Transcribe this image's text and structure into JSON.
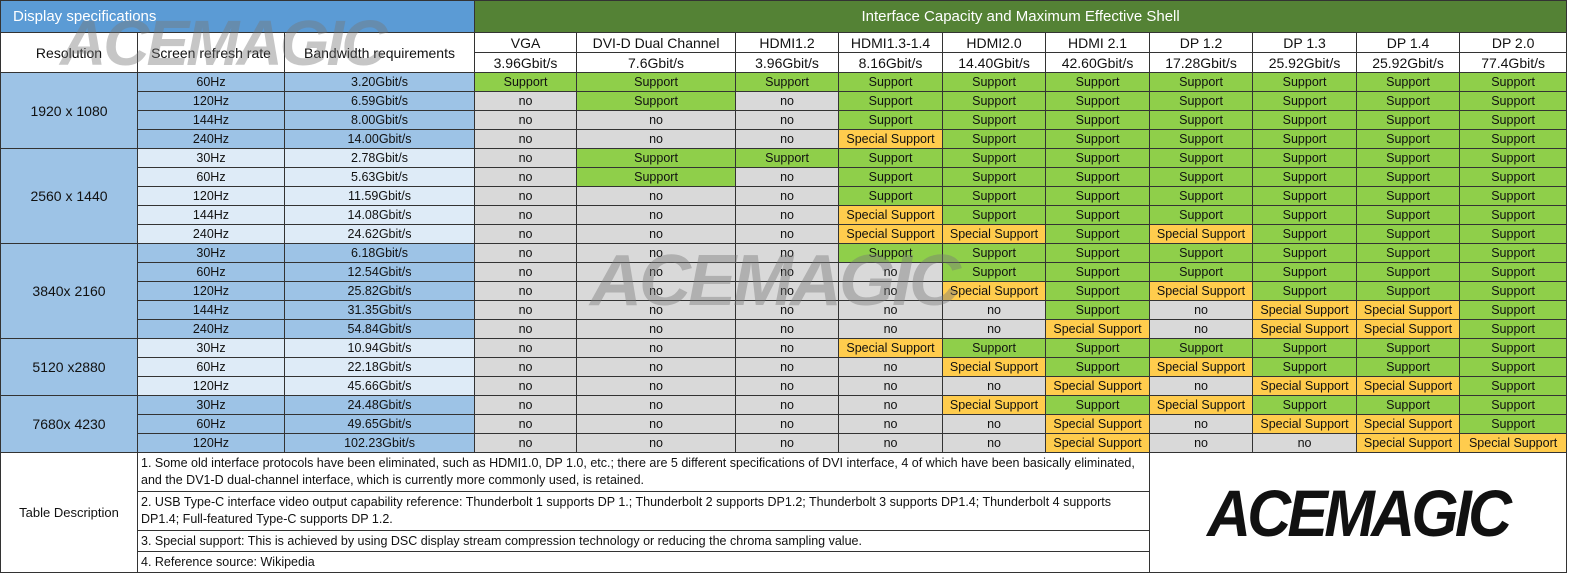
{
  "header": {
    "display_title": "Display specifications",
    "interface_title": "Interface Capacity and Maximum Effective Shell",
    "columns": [
      "Resolution",
      "Screen refresh rate",
      "Bandwidth requirements"
    ],
    "interfaces": [
      {
        "name": "VGA",
        "capacity": "3.96Gbit/s"
      },
      {
        "name": "DVI-D Dual Channel",
        "capacity": "7.6Gbit/s"
      },
      {
        "name": "HDMI1.2",
        "capacity": "3.96Gbit/s"
      },
      {
        "name": "HDMI1.3-1.4",
        "capacity": "8.16Gbit/s"
      },
      {
        "name": "HDMI2.0",
        "capacity": "14.40Gbit/s"
      },
      {
        "name": "HDMI 2.1",
        "capacity": "42.60Gbit/s"
      },
      {
        "name": "DP 1.2",
        "capacity": "17.28Gbit/s"
      },
      {
        "name": "DP 1.3",
        "capacity": "25.92Gbit/s"
      },
      {
        "name": "DP 1.4",
        "capacity": "25.92Gbit/s"
      },
      {
        "name": "DP 2.0",
        "capacity": "77.4Gbit/s"
      }
    ]
  },
  "status_labels": {
    "S": "Support",
    "P": "Special Support",
    "N": "no"
  },
  "status_colors": {
    "S": "#8fcf4a",
    "P": "#ffcc4d",
    "N": "#d9d9d9"
  },
  "groups": [
    {
      "resolution": "1920 x 1080",
      "rows": [
        {
          "hz": "60Hz",
          "bw": "3.20Gbit/s",
          "s": [
            "S",
            "S",
            "S",
            "S",
            "S",
            "S",
            "S",
            "S",
            "S",
            "S"
          ]
        },
        {
          "hz": "120Hz",
          "bw": "6.59Gbit/s",
          "s": [
            "N",
            "S",
            "N",
            "S",
            "S",
            "S",
            "S",
            "S",
            "S",
            "S"
          ]
        },
        {
          "hz": "144Hz",
          "bw": "8.00Gbit/s",
          "s": [
            "N",
            "N",
            "N",
            "S",
            "S",
            "S",
            "S",
            "S",
            "S",
            "S"
          ]
        },
        {
          "hz": "240Hz",
          "bw": "14.00Gbit/s",
          "s": [
            "N",
            "N",
            "N",
            "P",
            "S",
            "S",
            "S",
            "S",
            "S",
            "S"
          ]
        }
      ]
    },
    {
      "resolution": "2560 x 1440",
      "rows": [
        {
          "hz": "30Hz",
          "bw": "2.78Gbit/s",
          "s": [
            "N",
            "S",
            "S",
            "S",
            "S",
            "S",
            "S",
            "S",
            "S",
            "S"
          ]
        },
        {
          "hz": "60Hz",
          "bw": "5.63Gbit/s",
          "s": [
            "N",
            "S",
            "N",
            "S",
            "S",
            "S",
            "S",
            "S",
            "S",
            "S"
          ]
        },
        {
          "hz": "120Hz",
          "bw": "11.59Gbit/s",
          "s": [
            "N",
            "N",
            "N",
            "S",
            "S",
            "S",
            "S",
            "S",
            "S",
            "S"
          ]
        },
        {
          "hz": "144Hz",
          "bw": "14.08Gbit/s",
          "s": [
            "N",
            "N",
            "N",
            "P",
            "S",
            "S",
            "S",
            "S",
            "S",
            "S"
          ]
        },
        {
          "hz": "240Hz",
          "bw": "24.62Gbit/s",
          "s": [
            "N",
            "N",
            "N",
            "P",
            "P",
            "S",
            "P",
            "S",
            "S",
            "S"
          ]
        }
      ]
    },
    {
      "resolution": "3840x 2160",
      "rows": [
        {
          "hz": "30Hz",
          "bw": "6.18Gbit/s",
          "s": [
            "N",
            "N",
            "N",
            "S",
            "S",
            "S",
            "S",
            "S",
            "S",
            "S"
          ]
        },
        {
          "hz": "60Hz",
          "bw": "12.54Gbit/s",
          "s": [
            "N",
            "N",
            "N",
            "N",
            "S",
            "S",
            "S",
            "S",
            "S",
            "S"
          ]
        },
        {
          "hz": "120Hz",
          "bw": "25.82Gbit/s",
          "s": [
            "N",
            "N",
            "N",
            "N",
            "P",
            "S",
            "P",
            "S",
            "S",
            "S"
          ]
        },
        {
          "hz": "144Hz",
          "bw": "31.35Gbit/s",
          "s": [
            "N",
            "N",
            "N",
            "N",
            "N",
            "S",
            "N",
            "P",
            "P",
            "S"
          ]
        },
        {
          "hz": "240Hz",
          "bw": "54.84Gbit/s",
          "s": [
            "N",
            "N",
            "N",
            "N",
            "N",
            "P",
            "N",
            "P",
            "P",
            "S"
          ]
        }
      ]
    },
    {
      "resolution": "5120 x2880",
      "rows": [
        {
          "hz": "30Hz",
          "bw": "10.94Gbit/s",
          "s": [
            "N",
            "N",
            "N",
            "P",
            "S",
            "S",
            "S",
            "S",
            "S",
            "S"
          ]
        },
        {
          "hz": "60Hz",
          "bw": "22.18Gbit/s",
          "s": [
            "N",
            "N",
            "N",
            "N",
            "P",
            "S",
            "P",
            "S",
            "S",
            "S"
          ]
        },
        {
          "hz": "120Hz",
          "bw": "45.66Gbit/s",
          "s": [
            "N",
            "N",
            "N",
            "N",
            "N",
            "P",
            "N",
            "P",
            "P",
            "S"
          ]
        }
      ]
    },
    {
      "resolution": "7680x 4230",
      "rows": [
        {
          "hz": "30Hz",
          "bw": "24.48Gbit/s",
          "s": [
            "N",
            "N",
            "N",
            "N",
            "P",
            "S",
            "P",
            "S",
            "S",
            "S"
          ]
        },
        {
          "hz": "60Hz",
          "bw": "49.65Gbit/s",
          "s": [
            "N",
            "N",
            "N",
            "N",
            "N",
            "P",
            "N",
            "P",
            "P",
            "S"
          ]
        },
        {
          "hz": "120Hz",
          "bw": "102.23Gbit/s",
          "s": [
            "N",
            "N",
            "N",
            "N",
            "N",
            "P",
            "N",
            "N",
            "P",
            "P"
          ]
        }
      ]
    }
  ],
  "notes": {
    "label": "Table Description",
    "items": [
      "1. Some old interface protocols have been eliminated, such as HDMI1.0, DP 1.0, etc.; there are 5 different specifications of DVI interface, 4 of which have been basically eliminated, and the DV1-D dual-channel interface, which is currently more commonly used, is retained.",
      "2. USB Type-C interface video output capability reference: Thunderbolt 1 supports DP 1.; Thunderbolt 2 supports DP1.2; Thunderbolt 3 supports DP1.4; Thunderbolt 4 supports DP1.4; Full-featured Type-C supports DP 1.2.",
      "3. Special support: This is achieved by using DSC display stream compression technology or reducing the chroma sampling value.",
      "4. Reference source: Wikipedia"
    ]
  },
  "brand": {
    "logo_text": "ACEMAGIC",
    "watermark_text": "ACEMAGIC"
  }
}
